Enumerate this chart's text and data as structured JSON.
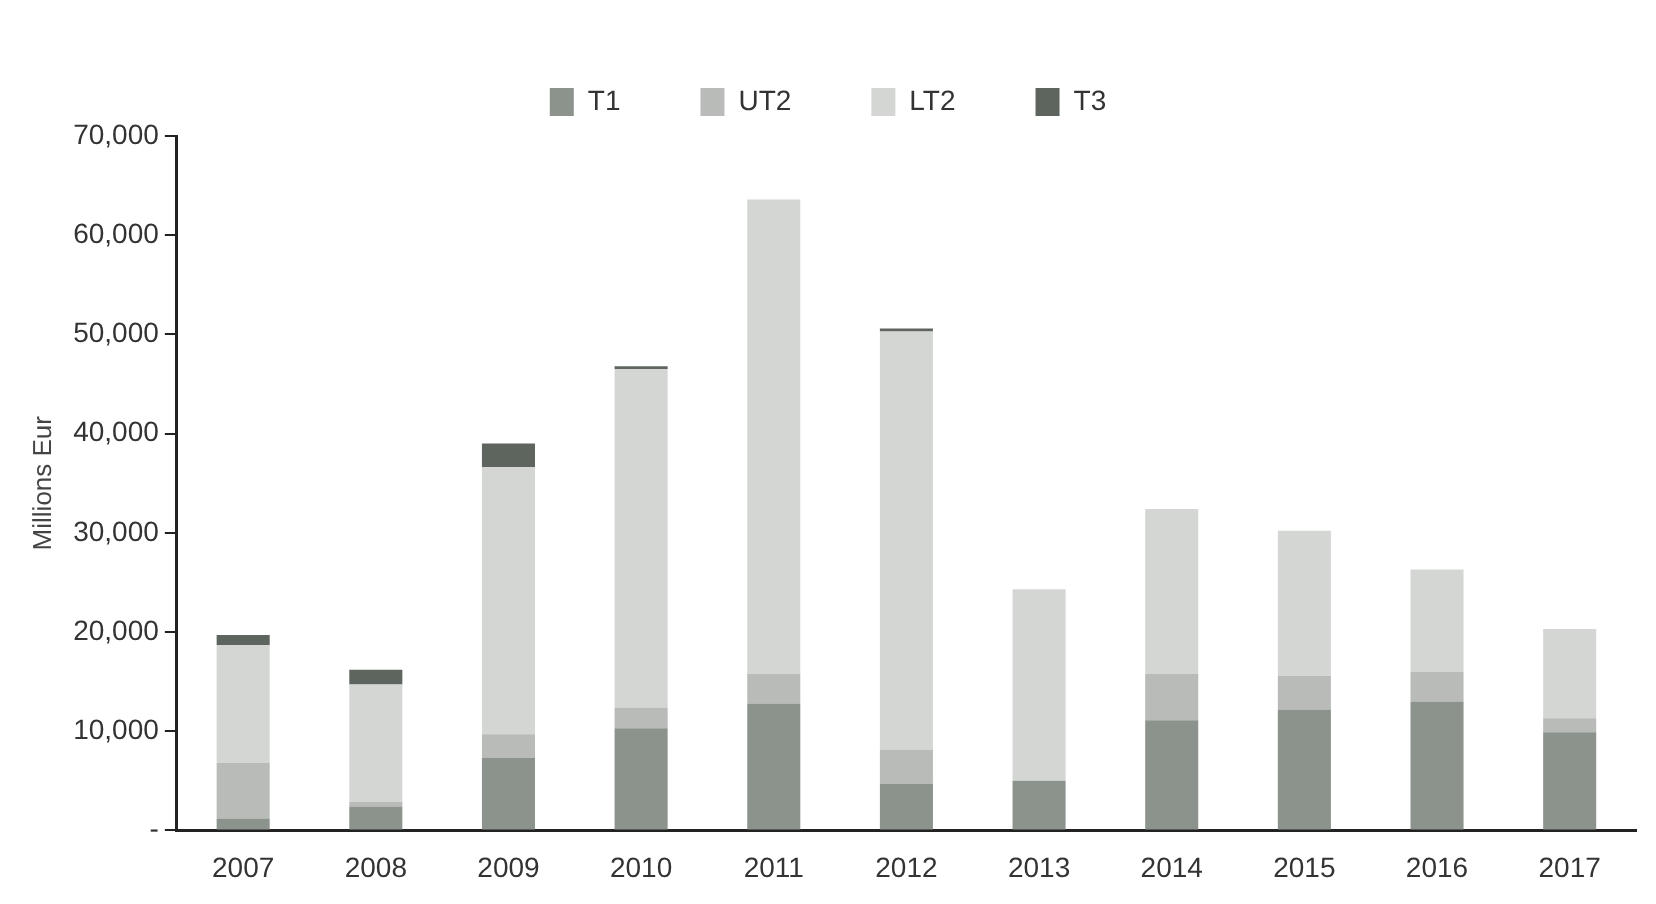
{
  "chart_data": {
    "type": "bar",
    "stacked": true,
    "ylabel": "Millions Eur",
    "legend": "top",
    "grid": false,
    "categories": [
      "2007",
      "2008",
      "2009",
      "2010",
      "2011",
      "2012",
      "2013",
      "2014",
      "2015",
      "2016",
      "2017"
    ],
    "series": [
      {
        "name": "T1",
        "color": "#8c938c",
        "values": [
          1200,
          2400,
          7300,
          10300,
          12800,
          4700,
          5000,
          11100,
          12200,
          13000,
          9900
        ]
      },
      {
        "name": "UT2",
        "color": "#b8bbb8",
        "values": [
          5600,
          500,
          2400,
          2100,
          3000,
          3400,
          0,
          4700,
          3400,
          3000,
          1400
        ]
      },
      {
        "name": "LT2",
        "color": "#d4d6d4",
        "values": [
          11900,
          11800,
          26900,
          34100,
          47800,
          42200,
          19300,
          16600,
          14600,
          10300,
          9000
        ]
      },
      {
        "name": "T3",
        "color": "#5e645e",
        "values": [
          1000,
          1500,
          2400,
          300,
          0,
          300,
          0,
          0,
          0,
          0,
          0
        ]
      }
    ],
    "ylim": [
      0,
      70000
    ],
    "yticks": [
      {
        "value": 0,
        "label": "-"
      },
      {
        "value": 10000,
        "label": "10,000"
      },
      {
        "value": 20000,
        "label": "20,000"
      },
      {
        "value": 30000,
        "label": "30,000"
      },
      {
        "value": 40000,
        "label": "40,000"
      },
      {
        "value": 50000,
        "label": "50,000"
      },
      {
        "value": 60000,
        "label": "60,000"
      },
      {
        "value": 70000,
        "label": "70,000"
      }
    ]
  }
}
